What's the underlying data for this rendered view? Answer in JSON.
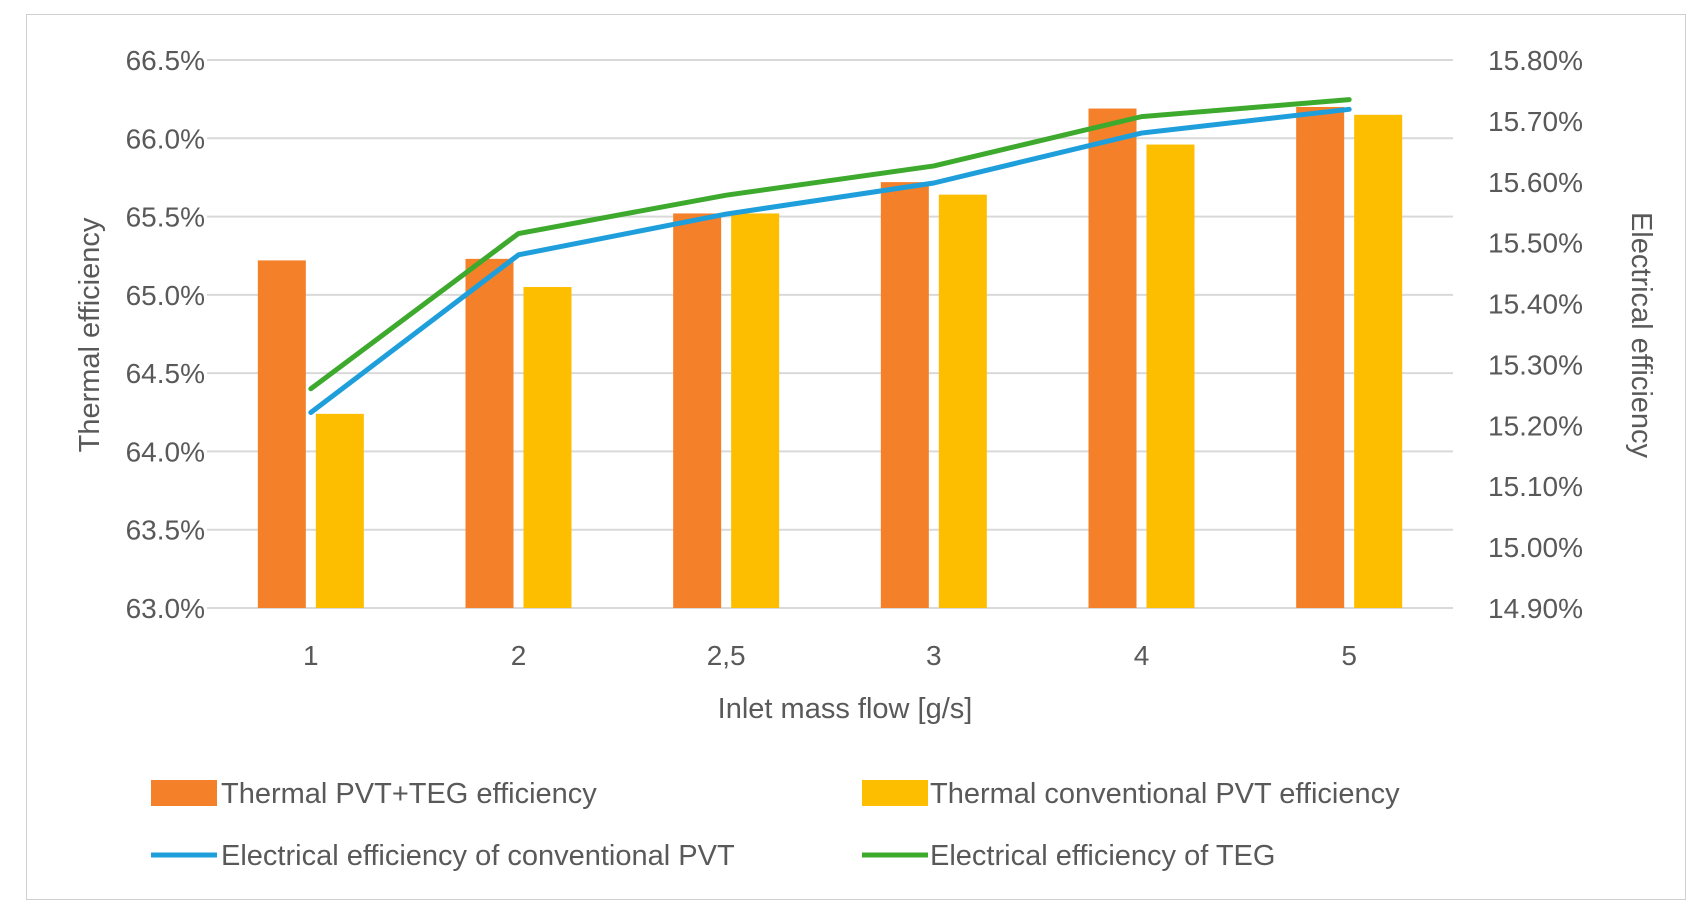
{
  "chart_data": {
    "type": "bar",
    "title": "",
    "xlabel": "Inlet mass flow [g/s]",
    "ylabel": "Thermal efficiency",
    "y2label": "Electrical efficiency",
    "categories": [
      "1",
      "2",
      "2,5",
      "3",
      "4",
      "5"
    ],
    "ylim": [
      0.63,
      0.665
    ],
    "y2lim": [
      0.149,
      0.158
    ],
    "yticks": [
      "63.0%",
      "63.5%",
      "64.0%",
      "64.5%",
      "65.0%",
      "65.5%",
      "66.0%",
      "66.5%"
    ],
    "y2ticks": [
      "14.90%",
      "15.00%",
      "15.10%",
      "15.20%",
      "15.30%",
      "15.40%",
      "15.50%",
      "15.60%",
      "15.70%",
      "15.80%"
    ],
    "grid": true,
    "legend_position": "bottom",
    "series": [
      {
        "name": "Thermal PVT+TEG efficiency",
        "kind": "bar",
        "axis": "left",
        "color": "#F5802A",
        "values": [
          0.6522,
          0.6523,
          0.6552,
          0.6572,
          0.6619,
          0.662
        ]
      },
      {
        "name": "Thermal conventional PVT efficiency",
        "kind": "bar",
        "axis": "left",
        "color": "#FDBE00",
        "values": [
          0.6424,
          0.6505,
          0.6552,
          0.6564,
          0.6596,
          0.6615
        ]
      },
      {
        "name": "Electrical efficiency of conventional PVT",
        "kind": "line",
        "axis": "right",
        "color": "#1E9FDB",
        "values": [
          0.15221,
          0.1548,
          0.15547,
          0.15598,
          0.1568,
          0.15719
        ]
      },
      {
        "name": "Electrical efficiency of TEG",
        "kind": "line",
        "axis": "right",
        "color": "#3DAA2E",
        "values": [
          0.1526,
          0.15515,
          0.15578,
          0.15626,
          0.15707,
          0.15735
        ]
      }
    ]
  },
  "colors": {
    "gridline": "#d9d9d9",
    "text": "#595959",
    "border": "#d0d0d0"
  }
}
